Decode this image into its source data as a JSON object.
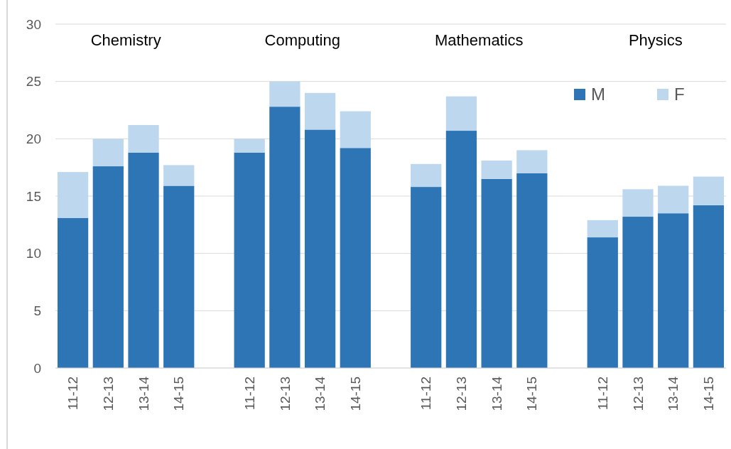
{
  "chart_data": {
    "type": "bar",
    "stacked": true,
    "categories": [
      "11-12",
      "12-13",
      "13-14",
      "14-15",
      null,
      "11-12",
      "12-13",
      "13-14",
      "14-15",
      null,
      "11-12",
      "12-13",
      "13-14",
      "14-15",
      null,
      "11-12",
      "12-13",
      "13-14",
      "14-15"
    ],
    "series": [
      {
        "name": "M",
        "color": "#2e75b6",
        "values": [
          13.1,
          17.6,
          18.8,
          15.9,
          null,
          18.8,
          22.8,
          20.8,
          19.2,
          null,
          15.8,
          20.7,
          16.5,
          17.0,
          null,
          11.4,
          13.2,
          13.5,
          14.2
        ]
      },
      {
        "name": "F",
        "color": "#bdd7ee",
        "values": [
          4.0,
          2.4,
          2.4,
          1.8,
          null,
          1.2,
          2.2,
          3.2,
          3.2,
          null,
          2.0,
          3.0,
          1.6,
          2.0,
          null,
          1.5,
          2.4,
          2.4,
          2.5
        ]
      }
    ],
    "annotations": [
      "Chemistry",
      "Computing",
      "Mathematics",
      "Physics"
    ],
    "ylim": [
      0,
      30
    ],
    "yticks": [
      0,
      5,
      10,
      15,
      20,
      25,
      30
    ],
    "grid": "y",
    "legend": "top right"
  }
}
